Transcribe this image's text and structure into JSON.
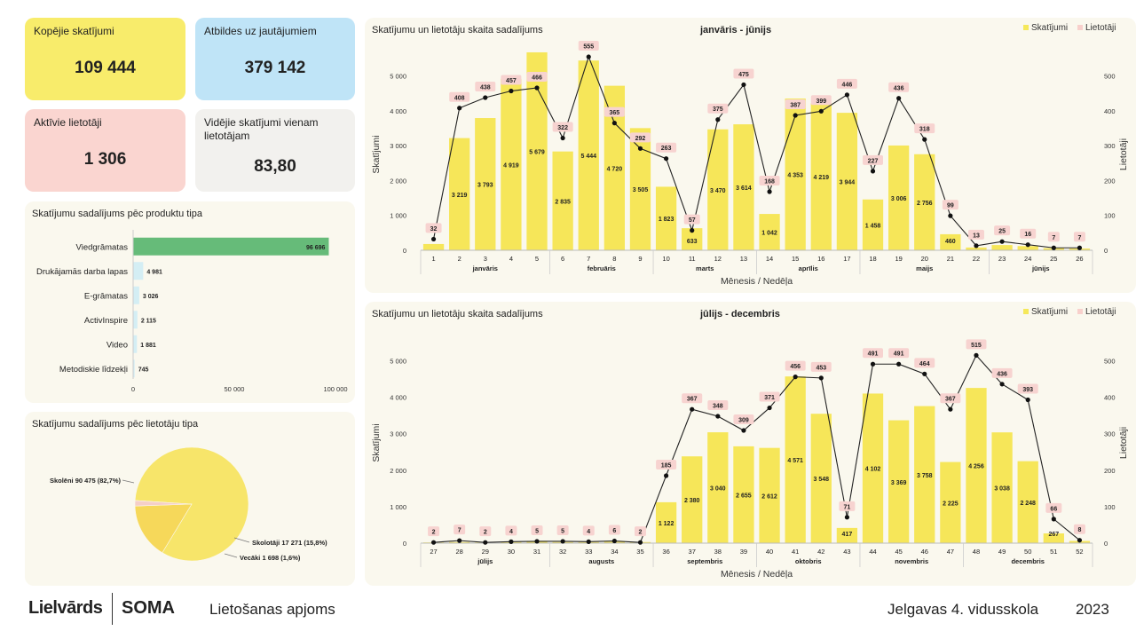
{
  "kpis": {
    "total_views": {
      "label": "Kopējie skatījumi",
      "value": "109 444",
      "color": "#f8ec6b"
    },
    "answers": {
      "label": "Atbildes uz jautājumiem",
      "value": "379 142",
      "color": "#bfe4f7"
    },
    "active_users": {
      "label": "Aktīvie lietotāji",
      "value": "1 306",
      "color": "#fad5d0"
    },
    "avg_views": {
      "label": "Vidējie skatījumi vienam lietotājam",
      "value": "83,80",
      "color": "#f2f1ee"
    }
  },
  "footer": {
    "logo_brand": "Lielvārds",
    "logo_product": "SOMA",
    "title": "Lietošanas apjoms",
    "school": "Jelgavas 4. vidusskola",
    "year": "2023"
  },
  "chart_data": [
    {
      "type": "bar",
      "title": "Skatījumu sadalījums pēc produktu tipa",
      "orientation": "horizontal",
      "categories": [
        "Viedgrāmatas",
        "Drukājamās darba lapas",
        "E-grāmatas",
        "ActivInspire",
        "Video",
        "Metodiskie līdzekļi"
      ],
      "values": [
        96696,
        4981,
        3026,
        2115,
        1881,
        745
      ],
      "value_labels": [
        "96 696",
        "4 981",
        "3 026",
        "2 115",
        "1 881",
        "745"
      ],
      "colors": [
        "#66bb79",
        "#d4eef4",
        "#d4eef4",
        "#d4eef4",
        "#d4eef4",
        "#d4eef4"
      ],
      "xlim": [
        0,
        100000
      ],
      "xticks": [
        "0",
        "50 000",
        "100 000"
      ]
    },
    {
      "type": "pie",
      "title": "Skatījumu sadalījums pēc lietotāju tipa",
      "labels": [
        "Skolēni 90 475 (82,7%)",
        "Skolotāji 17 271 (15,8%)",
        "Vecāki 1 698 (1,6%)"
      ],
      "values": [
        90475,
        17271,
        1698
      ],
      "colors": [
        "#f7e56a",
        "#f6d85a",
        "#f5cfc8"
      ]
    },
    {
      "type": "bar+line",
      "title": "Skatījumu un lietotāju skaita sadalījums",
      "subtitle": "janvāris - jūnijs",
      "xlabel": "Mēnesis / Nedēļa",
      "ylabel": "Skatījumi",
      "y2label": "Lietotāji",
      "legend": [
        "Skatījumi",
        "Lietotāji"
      ],
      "legend_position": "top-right",
      "ylim": [
        0,
        5500
      ],
      "y2lim": [
        0,
        550
      ],
      "yticks": [
        "0",
        "1 000",
        "2 000",
        "3 000",
        "4 000",
        "5 000"
      ],
      "y2ticks": [
        "0",
        "100",
        "200",
        "300",
        "400",
        "500"
      ],
      "weeks": [
        "1",
        "2",
        "3",
        "4",
        "5",
        "6",
        "7",
        "8",
        "9",
        "10",
        "11",
        "12",
        "13",
        "14",
        "15",
        "16",
        "17",
        "18",
        "19",
        "20",
        "21",
        "22",
        "23",
        "24",
        "25",
        "26"
      ],
      "views": [
        180,
        3219,
        3793,
        4919,
        5679,
        2835,
        5444,
        4720,
        3505,
        1823,
        633,
        3470,
        3614,
        1042,
        4353,
        4219,
        3944,
        1458,
        3006,
        2756,
        460,
        80,
        150,
        120,
        60,
        50
      ],
      "view_labels": [
        "",
        "3 219",
        "3 793",
        "4 919",
        "5 679",
        "2 835",
        "5 444",
        "4 720",
        "3 505",
        "1 823",
        "633",
        "3 470",
        "3 614",
        "1 042",
        "4 353",
        "4 219",
        "3 944",
        "1 458",
        "3 006",
        "2 756",
        "460",
        "",
        "",
        "",
        "",
        ""
      ],
      "users": [
        32,
        408,
        438,
        457,
        466,
        322,
        555,
        365,
        292,
        263,
        57,
        375,
        475,
        168,
        387,
        399,
        446,
        227,
        436,
        318,
        99,
        13,
        25,
        16,
        7,
        7
      ],
      "months": [
        {
          "name": "janvāris",
          "start": 0,
          "end": 4
        },
        {
          "name": "februāris",
          "start": 5,
          "end": 8
        },
        {
          "name": "marts",
          "start": 9,
          "end": 12
        },
        {
          "name": "aprīlis",
          "start": 13,
          "end": 16
        },
        {
          "name": "maijs",
          "start": 17,
          "end": 21
        },
        {
          "name": "jūnijs",
          "start": 22,
          "end": 25
        }
      ]
    },
    {
      "type": "bar+line",
      "title": "Skatījumu un lietotāju skaita sadalījums",
      "subtitle": "jūlijs - decembris",
      "xlabel": "Mēnesis / Nedēļa",
      "ylabel": "Skatījumi",
      "y2label": "Lietotāji",
      "legend": [
        "Skatījumi",
        "Lietotāji"
      ],
      "legend_position": "top-right",
      "ylim": [
        0,
        5500
      ],
      "y2lim": [
        0,
        550
      ],
      "yticks": [
        "0",
        "1 000",
        "2 000",
        "3 000",
        "4 000",
        "5 000"
      ],
      "y2ticks": [
        "0",
        "100",
        "200",
        "300",
        "400",
        "500"
      ],
      "weeks": [
        "27",
        "28",
        "29",
        "30",
        "31",
        "32",
        "33",
        "34",
        "35",
        "36",
        "37",
        "38",
        "39",
        "40",
        "41",
        "42",
        "43",
        "44",
        "45",
        "46",
        "47",
        "48",
        "49",
        "50",
        "51",
        "52"
      ],
      "views": [
        20,
        30,
        20,
        30,
        40,
        30,
        30,
        40,
        30,
        1122,
        2380,
        3040,
        2655,
        2612,
        4571,
        3548,
        417,
        4102,
        3369,
        3758,
        2225,
        4256,
        3038,
        2248,
        267,
        60
      ],
      "view_labels": [
        "",
        "",
        "",
        "",
        "",
        "",
        "",
        "",
        "",
        "1 122",
        "2 380",
        "3 040",
        "2 655",
        "2 612",
        "4 571",
        "3 548",
        "417",
        "4 102",
        "3 369",
        "3 758",
        "2 225",
        "4 256",
        "3 038",
        "2 248",
        "267",
        ""
      ],
      "users": [
        2,
        7,
        2,
        4,
        5,
        5,
        4,
        6,
        2,
        185,
        367,
        348,
        309,
        371,
        456,
        453,
        71,
        491,
        491,
        464,
        367,
        515,
        436,
        393,
        66,
        8
      ],
      "months": [
        {
          "name": "jūlijs",
          "start": 0,
          "end": 4
        },
        {
          "name": "augusts",
          "start": 5,
          "end": 8
        },
        {
          "name": "septembris",
          "start": 9,
          "end": 12
        },
        {
          "name": "oktobris",
          "start": 13,
          "end": 16
        },
        {
          "name": "novembris",
          "start": 17,
          "end": 20
        },
        {
          "name": "decembris",
          "start": 21,
          "end": 25
        }
      ]
    }
  ]
}
